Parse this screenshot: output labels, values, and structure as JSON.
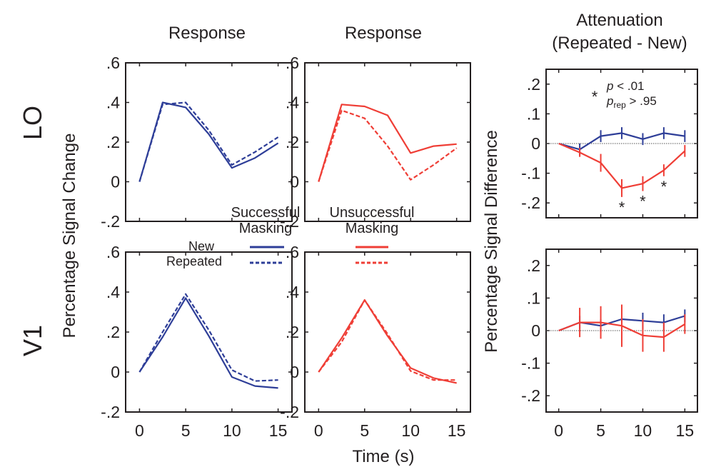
{
  "col_titles": [
    "Response",
    "Response",
    "Attenuation\n(Repeated - New)"
  ],
  "row_labels": [
    "LO",
    "V1"
  ],
  "ylabel_response": "Percentage Signal Change",
  "ylabel_attenuation": "Percentage Signal Difference",
  "xlabel": "Time (s)",
  "legend": {
    "successful_title": "Successful\nMasking",
    "unsuccessful_title": "Unsuccessful\nMasking",
    "new_label": "New",
    "repeated_label": "Repeated"
  },
  "significance": {
    "p_line": "p < .01",
    "prep_line": "p_rep > .95",
    "star": "*"
  },
  "colors": {
    "successful": "#2e3e98",
    "unsuccessful": "#ef3e36",
    "axis": "#231f20"
  },
  "chart_data": [
    {
      "type": "line",
      "row": "LO",
      "condition": "Successful Masking",
      "x": [
        0,
        2.5,
        5,
        7.5,
        10,
        12.5,
        15
      ],
      "series": [
        {
          "name": "New",
          "style": "solid",
          "values": [
            0,
            0.4,
            0.375,
            0.24,
            0.07,
            0.12,
            0.195
          ]
        },
        {
          "name": "Repeated",
          "style": "dashed",
          "values": [
            0,
            0.39,
            0.4,
            0.26,
            0.085,
            0.15,
            0.225
          ]
        }
      ],
      "xlim": [
        -1.5,
        16.5
      ],
      "ylim": [
        -0.2,
        0.6
      ],
      "xticks": [
        0,
        5,
        10,
        15
      ],
      "yticks": [
        -0.2,
        0,
        0.2,
        0.4,
        0.6
      ],
      "ytick_labels": [
        "-.2",
        "0",
        ".2",
        ".4",
        ".6"
      ]
    },
    {
      "type": "line",
      "row": "LO",
      "condition": "Unsuccessful Masking",
      "x": [
        0,
        2.5,
        5,
        7.5,
        10,
        12.5,
        15
      ],
      "series": [
        {
          "name": "New",
          "style": "solid",
          "values": [
            0,
            0.39,
            0.38,
            0.335,
            0.145,
            0.18,
            0.19
          ]
        },
        {
          "name": "Repeated",
          "style": "dashed",
          "values": [
            0,
            0.36,
            0.32,
            0.18,
            0.01,
            0.085,
            0.17
          ]
        }
      ],
      "xlim": [
        -1.5,
        16.5
      ],
      "ylim": [
        -0.2,
        0.6
      ],
      "xticks": [
        0,
        5,
        10,
        15
      ],
      "yticks": [
        -0.2,
        0,
        0.2,
        0.4,
        0.6
      ]
    },
    {
      "type": "line",
      "row": "LO",
      "panel": "Attenuation",
      "x": [
        0,
        2.5,
        5,
        7.5,
        10,
        12.5,
        15
      ],
      "series": [
        {
          "name": "Successful Masking",
          "color": "#2e3e98",
          "values": [
            0,
            -0.02,
            0.025,
            0.035,
            0.015,
            0.035,
            0.025
          ],
          "errors": [
            0,
            0.02,
            0.02,
            0.02,
            0.02,
            0.02,
            0.02
          ]
        },
        {
          "name": "Unsuccessful Masking",
          "color": "#ef3e36",
          "values": [
            0,
            -0.03,
            -0.065,
            -0.15,
            -0.135,
            -0.09,
            -0.025
          ],
          "errors": [
            0,
            0.015,
            0.03,
            0.03,
            0.025,
            0.02,
            0.02
          ]
        }
      ],
      "significant_x": [
        7.5,
        10,
        12.5
      ],
      "xlim": [
        -1.5,
        16.5
      ],
      "ylim": [
        -0.25,
        0.25
      ],
      "xticks": [
        0,
        5,
        10,
        15
      ],
      "yticks": [
        -0.2,
        -0.1,
        0,
        0.1,
        0.2
      ],
      "ytick_labels": [
        "-.2",
        "-.1",
        "0",
        ".1",
        ".2"
      ]
    },
    {
      "type": "line",
      "row": "V1",
      "condition": "Successful Masking",
      "x": [
        0,
        2.5,
        5,
        7.5,
        10,
        12.5,
        15
      ],
      "series": [
        {
          "name": "New",
          "style": "solid",
          "values": [
            0,
            0.175,
            0.37,
            0.18,
            -0.025,
            -0.07,
            -0.08
          ]
        },
        {
          "name": "Repeated",
          "style": "dashed",
          "values": [
            0,
            0.2,
            0.39,
            0.21,
            0.01,
            -0.045,
            -0.04
          ]
        }
      ],
      "xlim": [
        -1.5,
        16.5
      ],
      "ylim": [
        -0.2,
        0.6
      ],
      "xticks": [
        0,
        5,
        10,
        15
      ],
      "yticks": [
        -0.2,
        0,
        0.2,
        0.4,
        0.6
      ]
    },
    {
      "type": "line",
      "row": "V1",
      "condition": "Unsuccessful Masking",
      "x": [
        0,
        2.5,
        5,
        7.5,
        10,
        12.5,
        15
      ],
      "series": [
        {
          "name": "New",
          "style": "solid",
          "values": [
            0,
            0.17,
            0.36,
            0.18,
            0.02,
            -0.03,
            -0.055
          ]
        },
        {
          "name": "Repeated",
          "style": "dashed",
          "values": [
            0,
            0.15,
            0.36,
            0.19,
            0.005,
            -0.04,
            -0.04
          ]
        }
      ],
      "xlim": [
        -1.5,
        16.5
      ],
      "ylim": [
        -0.2,
        0.6
      ],
      "xticks": [
        0,
        5,
        10,
        15
      ],
      "yticks": [
        -0.2,
        0,
        0.2,
        0.4,
        0.6
      ]
    },
    {
      "type": "line",
      "row": "V1",
      "panel": "Attenuation",
      "x": [
        0,
        2.5,
        5,
        7.5,
        10,
        12.5,
        15
      ],
      "series": [
        {
          "name": "Successful Masking",
          "color": "#2e3e98",
          "values": [
            0,
            0.025,
            0.015,
            0.035,
            0.03,
            0.025,
            0.045
          ],
          "errors": [
            0,
            0.02,
            0.02,
            0.025,
            0.025,
            0.025,
            0.02
          ]
        },
        {
          "name": "Unsuccessful Masking",
          "color": "#ef3e36",
          "values": [
            0,
            0.025,
            0.025,
            0.015,
            -0.015,
            -0.02,
            0.02
          ],
          "errors": [
            0,
            0.045,
            0.05,
            0.065,
            0.05,
            0.045,
            0.03
          ]
        }
      ],
      "xlim": [
        -1.5,
        16.5
      ],
      "ylim": [
        -0.25,
        0.25
      ],
      "xticks": [
        0,
        5,
        10,
        15
      ],
      "yticks": [
        -0.2,
        -0.1,
        0,
        0.1,
        0.2
      ]
    }
  ]
}
